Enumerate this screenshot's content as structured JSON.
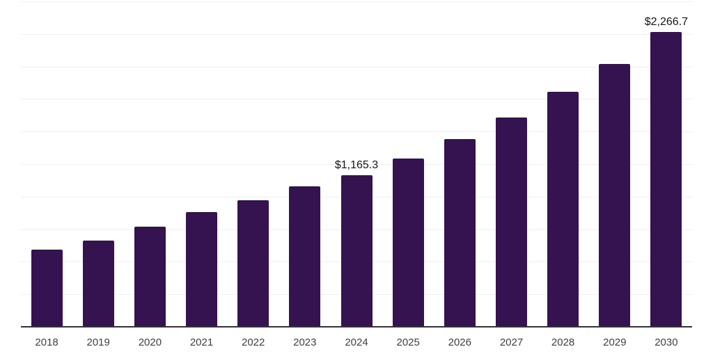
{
  "chart_data": {
    "type": "bar",
    "title": "",
    "xlabel": "",
    "ylabel": "",
    "categories": [
      "2018",
      "2019",
      "2020",
      "2021",
      "2022",
      "2023",
      "2024",
      "2025",
      "2026",
      "2027",
      "2028",
      "2029",
      "2030"
    ],
    "values": [
      595,
      660,
      770,
      880,
      975,
      1080,
      1165.3,
      1295,
      1440,
      1610,
      1805,
      2020,
      2266.7
    ],
    "value_labels": {
      "2024": "$1,165.3",
      "2030": "$2,266.7"
    },
    "ylim": [
      0,
      2500
    ],
    "gridline_interval": 250,
    "grid": "horizontal",
    "legend_position": "none",
    "colors": {
      "bar": "#351250",
      "axis_line": "#333333",
      "gridline": "#efefef",
      "tick_label": "#3f3f3f",
      "value_label": "#141414",
      "background": "#ffffff"
    }
  }
}
